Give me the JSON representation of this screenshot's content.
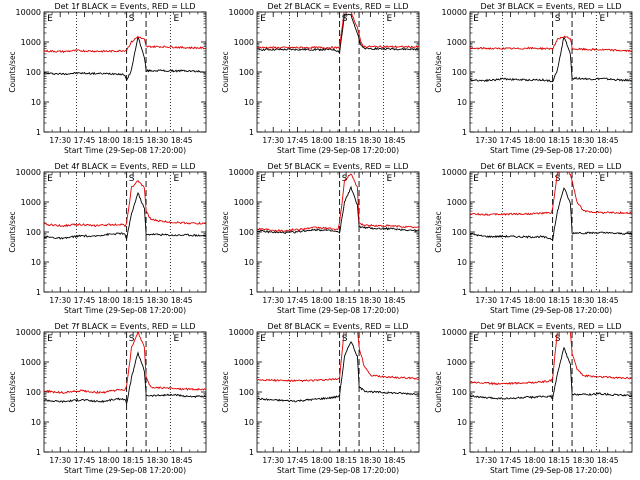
{
  "x_ticks": [
    {
      "label": "17:30",
      "t": 10
    },
    {
      "label": "17:45",
      "t": 25
    },
    {
      "label": "18:00",
      "t": 40
    },
    {
      "label": "18:15",
      "t": 55
    },
    {
      "label": "18:30",
      "t": 70
    },
    {
      "label": "18:45",
      "t": 85
    }
  ],
  "y_ticks": [
    {
      "label": "1",
      "v": 1
    },
    {
      "label": "10",
      "v": 10
    },
    {
      "label": "100",
      "v": 100
    },
    {
      "label": "1000",
      "v": 1000
    },
    {
      "label": "10000",
      "v": 10000
    }
  ],
  "colors": {
    "events": "#000000",
    "lld": "#e00000",
    "frame": "#000000"
  },
  "chart_data": [
    {
      "type": "line",
      "title": "Det 1f BLACK = Events, RED = LLD",
      "xlabel": "Start Time (29-Sep-08 17:20:00)",
      "ylabel": "Counts/sec",
      "ylim": [
        1,
        10000
      ],
      "y_scale": "log",
      "xlim_minutes": [
        0,
        100
      ],
      "event_lines": {
        "dotted_minutes": [
          20,
          78
        ],
        "dashed_minutes": [
          51,
          63
        ],
        "marker_labels": [
          "E",
          "S",
          "E"
        ]
      },
      "series": [
        {
          "name": "Events",
          "color": "#000000",
          "x_minutes": [
            0,
            6,
            12,
            20,
            28,
            36,
            45,
            50,
            51,
            54,
            58,
            62,
            63,
            66,
            70,
            78,
            86,
            94,
            100
          ],
          "values": [
            90,
            88,
            86,
            92,
            90,
            88,
            88,
            80,
            50,
            120,
            1500,
            300,
            110,
            110,
            112,
            108,
            110,
            105,
            102
          ]
        },
        {
          "name": "LLD",
          "color": "#e00000",
          "x_minutes": [
            0,
            6,
            12,
            20,
            28,
            36,
            45,
            50,
            51,
            54,
            58,
            62,
            63,
            66,
            70,
            78,
            86,
            94,
            100
          ],
          "values": [
            500,
            490,
            480,
            520,
            500,
            490,
            500,
            520,
            550,
            1000,
            1500,
            1200,
            700,
            700,
            700,
            690,
            650,
            640,
            620
          ]
        }
      ]
    },
    {
      "type": "line",
      "title": "Det 2f BLACK = Events, RED = LLD",
      "xlabel": "Start Time (29-Sep-08 17:20:00)",
      "ylabel": "Counts/sec",
      "ylim": [
        1,
        10000
      ],
      "y_scale": "log",
      "xlim_minutes": [
        0,
        100
      ],
      "event_lines": {
        "dotted_minutes": [
          20,
          78
        ],
        "dashed_minutes": [
          51,
          63
        ],
        "marker_labels": [
          "E",
          "S",
          "E"
        ]
      },
      "series": [
        {
          "name": "Events",
          "color": "#000000",
          "x_minutes": [
            0,
            10,
            20,
            30,
            40,
            47,
            50,
            51,
            54,
            58,
            62,
            64,
            66,
            70,
            80,
            90,
            100
          ],
          "values": [
            560,
            560,
            560,
            560,
            560,
            560,
            500,
            450,
            8000,
            8000,
            2000,
            800,
            600,
            600,
            590,
            580,
            570
          ]
        },
        {
          "name": "LLD",
          "color": "#e00000",
          "x_minutes": [
            0,
            10,
            20,
            30,
            40,
            47,
            50,
            51,
            54,
            58,
            62,
            64,
            66,
            70,
            80,
            90,
            100
          ],
          "values": [
            650,
            650,
            650,
            650,
            650,
            650,
            640,
            700,
            12000,
            10000,
            3000,
            1000,
            700,
            700,
            700,
            690,
            680
          ]
        }
      ]
    },
    {
      "type": "line",
      "title": "Det 3f BLACK = Events, RED = LLD",
      "xlabel": "Start Time (29-Sep-08 17:20:00)",
      "ylabel": "Counts/sec",
      "ylim": [
        1,
        10000
      ],
      "y_scale": "log",
      "xlim_minutes": [
        0,
        100
      ],
      "event_lines": {
        "dotted_minutes": [
          20,
          78
        ],
        "dashed_minutes": [
          51,
          63
        ],
        "marker_labels": [
          "E",
          "S",
          "E"
        ]
      },
      "series": [
        {
          "name": "Events",
          "color": "#000000",
          "x_minutes": [
            0,
            8,
            16,
            20,
            28,
            36,
            44,
            50,
            51,
            54,
            58,
            62,
            63,
            66,
            74,
            82,
            90,
            100
          ],
          "values": [
            55,
            52,
            55,
            60,
            56,
            54,
            55,
            50,
            45,
            120,
            1500,
            400,
            60,
            62,
            58,
            60,
            55,
            52
          ]
        },
        {
          "name": "LLD",
          "color": "#e00000",
          "x_minutes": [
            0,
            8,
            16,
            20,
            28,
            36,
            44,
            50,
            51,
            54,
            58,
            62,
            63,
            66,
            74,
            82,
            90,
            100
          ],
          "values": [
            600,
            620,
            600,
            610,
            600,
            620,
            610,
            600,
            600,
            1200,
            1500,
            1300,
            600,
            580,
            560,
            550,
            530,
            500
          ]
        }
      ]
    },
    {
      "type": "line",
      "title": "Det 4f BLACK = Events, RED = LLD",
      "xlabel": "Start Time (29-Sep-08 17:20:00)",
      "ylabel": "Counts/sec",
      "ylim": [
        1,
        10000
      ],
      "y_scale": "log",
      "xlim_minutes": [
        0,
        100
      ],
      "event_lines": {
        "dotted_minutes": [
          20,
          78
        ],
        "dashed_minutes": [
          51,
          63
        ],
        "marker_labels": [
          "E",
          "S",
          "E"
        ]
      },
      "series": [
        {
          "name": "Events",
          "color": "#000000",
          "x_minutes": [
            0,
            6,
            12,
            18,
            24,
            30,
            36,
            42,
            48,
            50,
            51,
            54,
            58,
            62,
            63,
            66,
            72,
            80,
            88,
            100
          ],
          "values": [
            70,
            65,
            60,
            70,
            75,
            70,
            80,
            85,
            90,
            80,
            60,
            400,
            2000,
            600,
            80,
            85,
            82,
            78,
            80,
            75
          ]
        },
        {
          "name": "LLD",
          "color": "#e00000",
          "x_minutes": [
            0,
            6,
            12,
            18,
            24,
            30,
            36,
            42,
            48,
            50,
            51,
            54,
            58,
            62,
            63,
            66,
            72,
            80,
            88,
            100
          ],
          "values": [
            180,
            170,
            160,
            175,
            180,
            160,
            170,
            175,
            180,
            160,
            200,
            3000,
            5000,
            3000,
            500,
            260,
            230,
            210,
            200,
            190
          ]
        }
      ]
    },
    {
      "type": "line",
      "title": "Det 5f BLACK = Events, RED = LLD",
      "xlabel": "Start Time (29-Sep-08 17:20:00)",
      "ylabel": "Counts/sec",
      "ylim": [
        1,
        10000
      ],
      "y_scale": "log",
      "xlim_minutes": [
        0,
        100
      ],
      "event_lines": {
        "dotted_minutes": [
          20,
          78
        ],
        "dashed_minutes": [
          51,
          63
        ],
        "marker_labels": [
          "E",
          "S",
          "E"
        ]
      },
      "series": [
        {
          "name": "Events",
          "color": "#000000",
          "x_minutes": [
            0,
            8,
            16,
            24,
            30,
            36,
            42,
            48,
            50,
            51,
            54,
            58,
            62,
            63,
            66,
            74,
            82,
            90,
            100
          ],
          "values": [
            110,
            100,
            95,
            100,
            110,
            120,
            115,
            105,
            100,
            90,
            1000,
            3000,
            800,
            150,
            140,
            130,
            130,
            120,
            110
          ]
        },
        {
          "name": "LLD",
          "color": "#e00000",
          "x_minutes": [
            0,
            8,
            16,
            24,
            30,
            36,
            42,
            48,
            50,
            51,
            54,
            58,
            62,
            63,
            66,
            74,
            82,
            90,
            100
          ],
          "values": [
            130,
            120,
            110,
            120,
            130,
            140,
            135,
            125,
            120,
            200,
            5000,
            9000,
            3000,
            200,
            170,
            160,
            160,
            150,
            140
          ]
        }
      ]
    },
    {
      "type": "line",
      "title": "Det 6f BLACK = Events, RED = LLD",
      "xlabel": "Start Time (29-Sep-08 17:20:00)",
      "ylabel": "Counts/sec",
      "ylim": [
        1,
        10000
      ],
      "y_scale": "log",
      "xlim_minutes": [
        0,
        100
      ],
      "event_lines": {
        "dotted_minutes": [
          20,
          78
        ],
        "dashed_minutes": [
          51,
          63
        ],
        "marker_labels": [
          "E",
          "S",
          "E"
        ]
      },
      "series": [
        {
          "name": "Events",
          "color": "#000000",
          "x_minutes": [
            0,
            6,
            12,
            20,
            28,
            36,
            44,
            50,
            51,
            54,
            58,
            62,
            63,
            66,
            72,
            80,
            90,
            100
          ],
          "values": [
            90,
            75,
            70,
            72,
            70,
            68,
            70,
            60,
            55,
            500,
            3000,
            900,
            90,
            95,
            92,
            95,
            90,
            88
          ]
        },
        {
          "name": "LLD",
          "color": "#e00000",
          "x_minutes": [
            0,
            6,
            12,
            20,
            28,
            36,
            44,
            50,
            51,
            54,
            58,
            60,
            62,
            64,
            66,
            70,
            80,
            90,
            100
          ],
          "values": [
            400,
            390,
            380,
            390,
            400,
            400,
            420,
            430,
            600,
            9000,
            12000,
            12000,
            8000,
            3000,
            1000,
            500,
            450,
            440,
            430
          ]
        }
      ]
    },
    {
      "type": "line",
      "title": "Det 7f BLACK = Events, RED = LLD",
      "xlabel": "Start Time (29-Sep-08 17:20:00)",
      "ylabel": "Counts/sec",
      "ylim": [
        1,
        10000
      ],
      "y_scale": "log",
      "xlim_minutes": [
        0,
        100
      ],
      "event_lines": {
        "dotted_minutes": [
          20,
          78
        ],
        "dashed_minutes": [
          51,
          63
        ],
        "marker_labels": [
          "E",
          "S",
          "E"
        ]
      },
      "series": [
        {
          "name": "Events",
          "color": "#000000",
          "x_minutes": [
            0,
            6,
            12,
            18,
            24,
            30,
            36,
            42,
            48,
            50,
            51,
            54,
            58,
            62,
            63,
            66,
            72,
            80,
            88,
            100
          ],
          "values": [
            55,
            50,
            48,
            52,
            55,
            50,
            48,
            55,
            60,
            55,
            40,
            300,
            2000,
            500,
            80,
            75,
            78,
            80,
            72,
            70
          ]
        },
        {
          "name": "LLD",
          "color": "#e00000",
          "x_minutes": [
            0,
            6,
            12,
            18,
            24,
            30,
            36,
            42,
            48,
            50,
            51,
            54,
            58,
            62,
            63,
            66,
            72,
            80,
            88,
            100
          ],
          "values": [
            110,
            100,
            95,
            105,
            110,
            100,
            95,
            110,
            120,
            115,
            150,
            3000,
            10000,
            3000,
            300,
            140,
            140,
            130,
            125,
            120
          ]
        }
      ]
    },
    {
      "type": "line",
      "title": "Det 8f BLACK = Events, RED = LLD",
      "xlabel": "Start Time (29-Sep-08 17:20:00)",
      "ylabel": "Counts/sec",
      "ylim": [
        1,
        10000
      ],
      "y_scale": "log",
      "xlim_minutes": [
        0,
        100
      ],
      "event_lines": {
        "dotted_minutes": [
          20,
          78
        ],
        "dashed_minutes": [
          51,
          63
        ],
        "marker_labels": [
          "E",
          "S",
          "E"
        ]
      },
      "series": [
        {
          "name": "Events",
          "color": "#000000",
          "x_minutes": [
            0,
            8,
            16,
            24,
            32,
            40,
            46,
            50,
            51,
            54,
            58,
            62,
            63,
            66,
            72,
            80,
            90,
            100
          ],
          "values": [
            60,
            55,
            52,
            50,
            55,
            60,
            65,
            70,
            80,
            1500,
            5000,
            1500,
            150,
            110,
            100,
            95,
            90,
            85
          ]
        },
        {
          "name": "LLD",
          "color": "#e00000",
          "x_minutes": [
            0,
            8,
            16,
            24,
            32,
            40,
            46,
            50,
            51,
            54,
            58,
            62,
            63,
            66,
            70,
            80,
            90,
            100
          ],
          "values": [
            260,
            250,
            240,
            235,
            240,
            250,
            260,
            280,
            300,
            15000,
            15000,
            12000,
            3000,
            800,
            350,
            320,
            300,
            280
          ]
        }
      ]
    },
    {
      "type": "line",
      "title": "Det 9f BLACK = Events, RED = LLD",
      "xlabel": "Start Time (29-Sep-08 17:20:00)",
      "ylabel": "Counts/sec",
      "ylim": [
        1,
        10000
      ],
      "y_scale": "log",
      "xlim_minutes": [
        0,
        100
      ],
      "event_lines": {
        "dotted_minutes": [
          20,
          78
        ],
        "dashed_minutes": [
          51,
          63
        ],
        "marker_labels": [
          "E",
          "S",
          "E"
        ]
      },
      "series": [
        {
          "name": "Events",
          "color": "#000000",
          "x_minutes": [
            0,
            8,
            16,
            24,
            32,
            40,
            46,
            50,
            51,
            54,
            58,
            62,
            63,
            66,
            72,
            80,
            90,
            100
          ],
          "values": [
            75,
            65,
            62,
            60,
            65,
            68,
            70,
            72,
            60,
            400,
            3000,
            800,
            80,
            85,
            82,
            88,
            80,
            75
          ]
        },
        {
          "name": "LLD",
          "color": "#e00000",
          "x_minutes": [
            0,
            8,
            16,
            24,
            32,
            40,
            46,
            50,
            51,
            54,
            58,
            62,
            63,
            66,
            70,
            80,
            90,
            100
          ],
          "values": [
            220,
            200,
            190,
            195,
            200,
            210,
            220,
            240,
            260,
            12000,
            15000,
            10000,
            2000,
            600,
            350,
            320,
            300,
            290
          ]
        }
      ]
    }
  ]
}
